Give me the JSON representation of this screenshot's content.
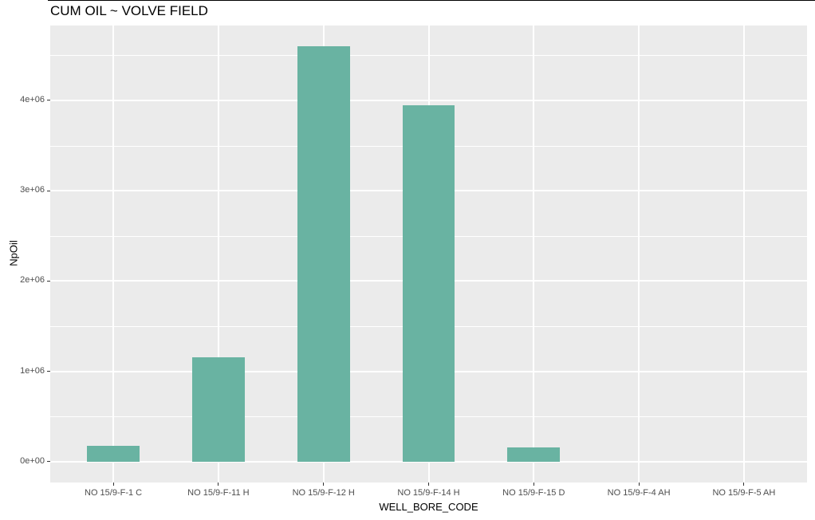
{
  "window": {
    "top_border_color": "#000000",
    "background_color": "#ffffff"
  },
  "chart_data": {
    "type": "bar",
    "title": "CUM OIL ~ VOLVE FIELD",
    "xlabel": "WELL_BORE_CODE",
    "ylabel": "NpOil",
    "categories": [
      "NO 15/9-F-1 C",
      "NO 15/9-F-11 H",
      "NO 15/9-F-12 H",
      "NO 15/9-F-14 H",
      "NO 15/9-F-15 D",
      "NO 15/9-F-4 AH",
      "NO 15/9-F-5 AH"
    ],
    "values": [
      180000,
      1160000,
      4600000,
      3950000,
      160000,
      0,
      0
    ],
    "y_ticks": [
      {
        "value": 0,
        "label": "0e+00"
      },
      {
        "value": 1000000,
        "label": "1e+06"
      },
      {
        "value": 2000000,
        "label": "2e+06"
      },
      {
        "value": 3000000,
        "label": "3e+06"
      },
      {
        "value": 4000000,
        "label": "4e+06"
      }
    ],
    "y_minor_values": [
      500000,
      1500000,
      2500000,
      3500000,
      4500000
    ],
    "ylim": [
      -230000,
      4830000
    ],
    "grid": "on",
    "legend_position": "none",
    "colors": {
      "bar_fill": "#69b3a2",
      "panel_background": "#ebebeb",
      "gridline": "#ffffff",
      "tick_text": "#4d4d4d",
      "tick_mark": "#333333",
      "title_text": "#000000"
    }
  }
}
